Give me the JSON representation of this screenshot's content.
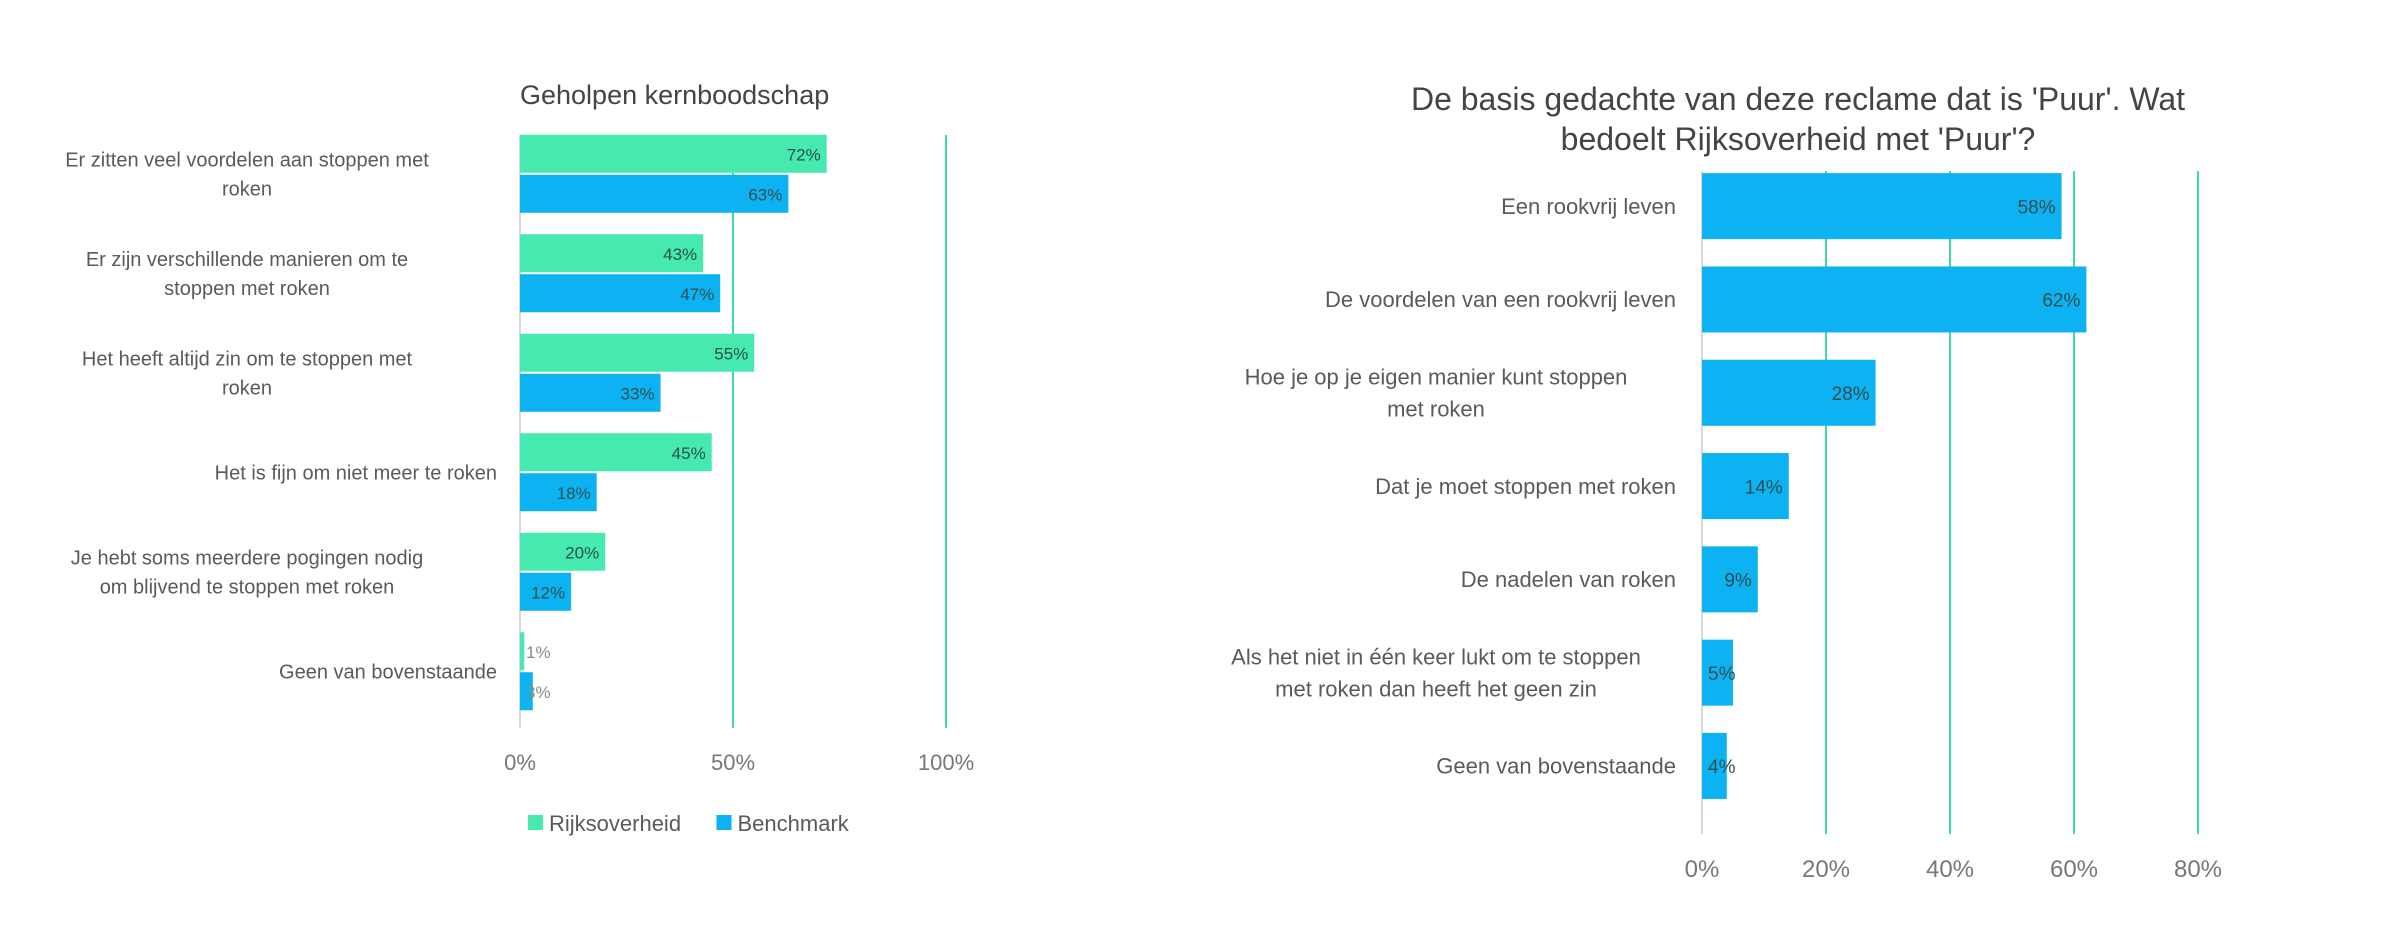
{
  "colors": {
    "rijksoverheid": "#46E9AE",
    "benchmark": "#0DB2F2",
    "grid": "#3DDBA8",
    "text": "#5a5a5a",
    "bar_label": "#2f4f4f"
  },
  "chart_data": [
    {
      "type": "bar",
      "orientation": "horizontal",
      "title": "Geholpen kernboodschap",
      "categories": [
        [
          "Er zitten veel voordelen aan stoppen met",
          "roken"
        ],
        [
          "Er zijn verschillende manieren om te",
          "stoppen met roken"
        ],
        [
          "Het heeft altijd zin om te stoppen met",
          "roken"
        ],
        [
          "Het is fijn om niet meer te roken"
        ],
        [
          "Je hebt soms meerdere pogingen nodig",
          "om blijvend te stoppen met roken"
        ],
        [
          "Geen van bovenstaande"
        ]
      ],
      "series": [
        {
          "name": "Rijksoverheid",
          "values": [
            72,
            43,
            55,
            45,
            20,
            1
          ],
          "labels": [
            "72%",
            "43%",
            "55%",
            "45%",
            "20%",
            "1%"
          ]
        },
        {
          "name": "Benchmark",
          "values": [
            63,
            47,
            33,
            18,
            12,
            3
          ],
          "labels": [
            "63%",
            "47%",
            "33%",
            "18%",
            "12%",
            "3%"
          ]
        }
      ],
      "xlim": [
        0,
        100
      ],
      "ticks": [
        0,
        50,
        100
      ],
      "tick_labels": [
        "0%",
        "50%",
        "100%"
      ],
      "grid": true,
      "legend": "bottom"
    },
    {
      "type": "bar",
      "orientation": "horizontal",
      "title": [
        "De basis gedachte van deze reclame dat is 'Puur'. Wat",
        "bedoelt Rijksoverheid met 'Puur'?"
      ],
      "categories": [
        [
          "Een rookvrij leven"
        ],
        [
          "De voordelen van een rookvrij leven"
        ],
        [
          "Hoe je op je eigen manier kunt stoppen",
          "met roken"
        ],
        [
          "Dat je moet stoppen met roken"
        ],
        [
          "De nadelen van roken"
        ],
        [
          "Als het niet in één keer lukt om te stoppen",
          "met roken dan heeft het geen zin"
        ],
        [
          "Geen van bovenstaande"
        ]
      ],
      "series": [
        {
          "name": "Rijksoverheid",
          "values": [
            58,
            62,
            28,
            14,
            9,
            5,
            4
          ],
          "labels": [
            "58%",
            "62%",
            "28%",
            "14%",
            "9%",
            "5%",
            "4%"
          ]
        }
      ],
      "xlim": [
        0,
        80
      ],
      "ticks": [
        0,
        20,
        40,
        60,
        80
      ],
      "tick_labels": [
        "0%",
        "20%",
        "40%",
        "60%",
        "80%"
      ],
      "grid": true,
      "legend": "none"
    }
  ]
}
